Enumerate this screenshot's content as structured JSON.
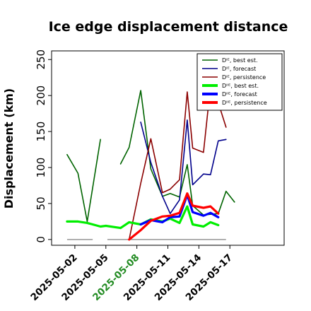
{
  "chart_data": {
    "type": "line",
    "title": "Ice edge displacement distance",
    "ylabel": "Displacement (km)",
    "xlabel": "",
    "ylim": [
      -8,
      262
    ],
    "yticks": [
      0,
      50,
      100,
      150,
      200,
      250
    ],
    "xlim": [
      0,
      30
    ],
    "xtick_positions": [
      3,
      7,
      11,
      15,
      19,
      23
    ],
    "xtick_labels": [
      "2025-05-02",
      "2025-05-05",
      "2025-05-08",
      "2025-05-11",
      "2025-05-14",
      "2025-05-17"
    ],
    "xtick_highlight": "2025-05-08",
    "xtick_colors": {
      "default": "#000000",
      "highlight": "#228B22"
    },
    "grid": false,
    "legend_position": "top-right",
    "legend": [
      {
        "label": "Dᴵᴱ, best est.",
        "color": "#006400",
        "width": 1.5
      },
      {
        "label": "Dᴵᴱ, forecast",
        "color": "#00008B",
        "width": 1.5
      },
      {
        "label": "Dᴵᴱ, persistence",
        "color": "#8B0000",
        "width": 1.5
      },
      {
        "label": "Dᴵᴵᴱ, best est.",
        "color": "#00EE00",
        "width": 4
      },
      {
        "label": "Dᴵᴵᴱ, forecast",
        "color": "#0000FF",
        "width": 4
      },
      {
        "label": "Dᴵᴵᴱ, persistence",
        "color": "#FF0000",
        "width": 4
      }
    ],
    "series": [
      {
        "name": "Dᴵᴱ, best est.",
        "color": "#006400",
        "width": 1.6,
        "x": [
          2,
          3.4,
          4.6,
          6.3,
          7,
          8.9,
          10,
          11.5,
          12.8,
          14.3,
          15.3,
          16.5,
          17.5,
          18.2,
          19.6,
          20.5,
          21.5,
          22.5,
          23.6,
          24.6
        ],
        "y": [
          118,
          92,
          25,
          139,
          null,
          105,
          128,
          207,
          98,
          60,
          64,
          59,
          104,
          47,
          34,
          35,
          36,
          67,
          52,
          null
        ]
      },
      {
        "name": "Dᴵᴱ, forecast",
        "color": "#00008B",
        "width": 1.6,
        "x": [
          11.5,
          12.8,
          14.3,
          15.3,
          16.5,
          17.5,
          18.2,
          19.6,
          20.5,
          21.5,
          22.5,
          23.6
        ],
        "y": [
          163,
          107,
          60,
          36,
          55,
          166,
          76,
          91,
          90,
          137,
          139,
          null
        ]
      },
      {
        "name": "Dᴵᴱ, persistence",
        "color": "#8B0000",
        "width": 1.6,
        "x": [
          10,
          11.5,
          12.8,
          14.3,
          15.3,
          16.5,
          17.5,
          18.2,
          19.6,
          20.5,
          21.5,
          22.5,
          23.6
        ],
        "y": [
          0,
          78,
          140,
          65,
          70,
          83,
          205,
          127,
          121,
          213,
          190,
          156,
          null
        ]
      },
      {
        "name": "Dᴵᴵᴱ, best est.",
        "color": "#00EE00",
        "width": 3.2,
        "x": [
          2,
          3.4,
          4.6,
          6.3,
          7,
          8.9,
          10,
          11.5,
          12.8,
          14.3,
          15.3,
          16.5,
          17.5,
          18.2,
          19.6,
          20.5,
          21.5,
          22.5,
          23.6
        ],
        "y": [
          25,
          25,
          23,
          18,
          19,
          16,
          24,
          21,
          28,
          25,
          29,
          23,
          46,
          21,
          18,
          24,
          20,
          null,
          null
        ]
      },
      {
        "name": "Dᴵᴵᴱ, forecast",
        "color": "#0000FF",
        "width": 3.2,
        "x": [
          11.5,
          12.8,
          14.3,
          15.3,
          16.5,
          17.5,
          18.2,
          19.6,
          20.5,
          21.5,
          22.5
        ],
        "y": [
          21,
          27,
          24,
          31,
          32,
          62,
          38,
          33,
          37,
          31,
          null
        ]
      },
      {
        "name": "Dᴵᴵᴱ, persistence",
        "color": "#FF0000",
        "width": 3.2,
        "x": [
          10,
          11.5,
          12.8,
          14.3,
          15.3,
          16.5,
          17.5,
          18.2,
          19.6,
          20.5,
          21.5,
          22.5
        ],
        "y": [
          0,
          13,
          26,
          32,
          33,
          37,
          64,
          47,
          44,
          46,
          36,
          null
        ]
      }
    ],
    "baseline_segments": [
      {
        "color": "#808080",
        "x": [
          2,
          5.3
        ],
        "y": 0
      },
      {
        "color": "#808080",
        "x": [
          7.2,
          22.5
        ],
        "y": 0
      }
    ]
  }
}
